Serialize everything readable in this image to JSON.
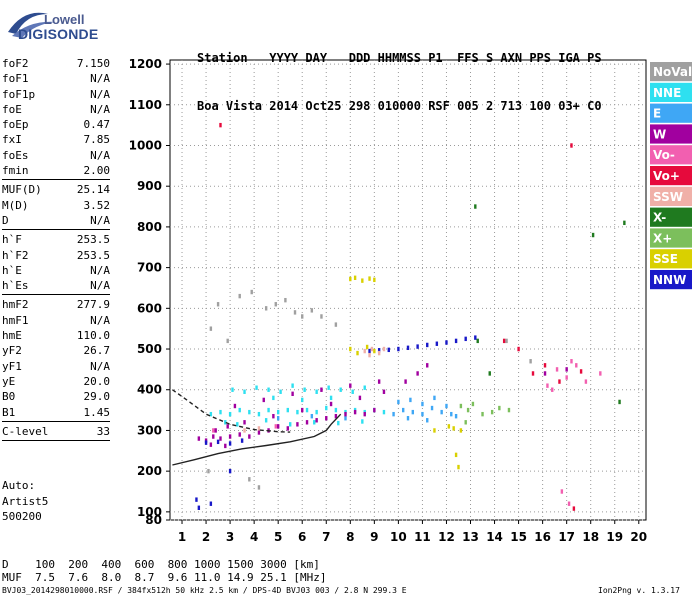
{
  "logo": {
    "line1": "Lowell",
    "line2": "DIGISONDE"
  },
  "header": {
    "row1": "Station   YYYY DAY   DDD HHMMSS P1  FFS S AXN PPS IGA PS",
    "row2": "Boa Vista 2014 Oct25 298 010000 RSF 005 2 713 100 03+ C0"
  },
  "params": [
    {
      "name": "foF2",
      "value": "7.150"
    },
    {
      "name": "foF1",
      "value": "N/A"
    },
    {
      "name": "foF1p",
      "value": "N/A"
    },
    {
      "name": "foE",
      "value": "N/A"
    },
    {
      "name": "foEp",
      "value": "0.47"
    },
    {
      "name": "fxI",
      "value": "7.85"
    },
    {
      "name": "foEs",
      "value": "N/A"
    },
    {
      "name": "fmin",
      "value": "2.00"
    },
    {
      "sep": true
    },
    {
      "name": "MUF(D)",
      "value": "25.14"
    },
    {
      "name": "M(D)",
      "value": "3.52"
    },
    {
      "name": "D",
      "value": "N/A"
    },
    {
      "sep": true
    },
    {
      "name": "h`F",
      "value": "253.5"
    },
    {
      "name": "h`F2",
      "value": "253.5"
    },
    {
      "name": "h`E",
      "value": "N/A"
    },
    {
      "name": "h`Es",
      "value": "N/A"
    },
    {
      "sep": true
    },
    {
      "name": "hmF2",
      "value": "277.9"
    },
    {
      "name": "hmF1",
      "value": "N/A"
    },
    {
      "name": "hmE",
      "value": "110.0"
    },
    {
      "name": "yF2",
      "value": "26.7"
    },
    {
      "name": "yF1",
      "value": "N/A"
    },
    {
      "name": "yE",
      "value": "20.0"
    },
    {
      "name": "B0",
      "value": "29.0"
    },
    {
      "name": "B1",
      "value": "1.45"
    },
    {
      "sep": true
    },
    {
      "name": "C-level",
      "value": "33"
    },
    {
      "sep": true
    }
  ],
  "auto": {
    "line1": "Auto:",
    "line2": "Artist5",
    "line3": "500200"
  },
  "dmuf": {
    "row1": "D    100  200  400  600  800 1000 1500 3000 [km]",
    "row2": "MUF  7.5  7.6  8.0  8.7  9.6 11.0 14.9 25.1 [MHz]"
  },
  "footer": {
    "left": "BVJ03_2014298010000.RSF / 384fx512h 50 kHz 2.5 km / DPS-4D BVJ03 003 / 2.8 N 299.3 E",
    "right": "Ion2Png v. 1.3.17"
  },
  "colors": {
    "NoVal": "#a0a0a0",
    "NNE": "#2ee0f0",
    "E": "#3fa7f5",
    "W": "#a1009f",
    "Vo-": "#f25fb0",
    "Vo+": "#e60a3c",
    "SSW": "#f0b0a8",
    "X-": "#1f7a1f",
    "X+": "#7cbf5c",
    "SSE": "#d9d000",
    "NNW": "#1818c8",
    "logo_blue": "#2e4c8f"
  },
  "chart_data": {
    "type": "scatter",
    "title": "",
    "xlabel": "",
    "ylabel": "",
    "xlim": [
      0.5,
      20.3
    ],
    "ylim": [
      80,
      1210
    ],
    "x_ticks": [
      1,
      2,
      3,
      4,
      5,
      6,
      7,
      8,
      9,
      10,
      11,
      12,
      13,
      14,
      15,
      16,
      17,
      18,
      19,
      20
    ],
    "y_ticks": [
      80,
      100,
      200,
      300,
      400,
      500,
      600,
      700,
      800,
      900,
      1000,
      1100,
      1200
    ],
    "legend": [
      "NoVal",
      "NNE",
      "E",
      "W",
      "Vo-",
      "Vo+",
      "SSW",
      "X-",
      "X+",
      "SSE",
      "NNW"
    ],
    "legend_position": "right",
    "grid": true,
    "series": [
      {
        "name": "NNE",
        "points": [
          [
            2.2,
            340
          ],
          [
            2.6,
            345
          ],
          [
            3.0,
            340
          ],
          [
            3.4,
            350
          ],
          [
            3.8,
            345
          ],
          [
            4.2,
            340
          ],
          [
            4.6,
            350
          ],
          [
            5.0,
            345
          ],
          [
            5.4,
            350
          ],
          [
            5.8,
            345
          ],
          [
            6.2,
            350
          ],
          [
            6.6,
            345
          ],
          [
            7.0,
            355
          ],
          [
            7.4,
            350
          ],
          [
            7.8,
            345
          ],
          [
            8.2,
            350
          ],
          [
            8.6,
            345
          ],
          [
            9.0,
            350
          ],
          [
            9.4,
            345
          ],
          [
            3.1,
            400
          ],
          [
            3.6,
            395
          ],
          [
            4.1,
            405
          ],
          [
            4.6,
            400
          ],
          [
            5.1,
            395
          ],
          [
            5.6,
            410
          ],
          [
            6.1,
            400
          ],
          [
            6.6,
            395
          ],
          [
            7.1,
            405
          ],
          [
            7.6,
            400
          ],
          [
            8.1,
            395
          ],
          [
            8.6,
            405
          ],
          [
            2.8,
            320
          ],
          [
            3.3,
            315
          ],
          [
            4.5,
            325
          ],
          [
            5.5,
            315
          ],
          [
            6.5,
            320
          ],
          [
            7.5,
            318
          ],
          [
            8.5,
            322
          ],
          [
            4.8,
            380
          ],
          [
            6.0,
            375
          ],
          [
            7.2,
            380
          ]
        ]
      },
      {
        "name": "E",
        "points": [
          [
            9.8,
            340
          ],
          [
            10.2,
            350
          ],
          [
            10.6,
            345
          ],
          [
            11.0,
            340
          ],
          [
            11.4,
            355
          ],
          [
            11.8,
            345
          ],
          [
            12.2,
            340
          ],
          [
            10.0,
            370
          ],
          [
            10.5,
            375
          ],
          [
            11.0,
            365
          ],
          [
            11.5,
            380
          ],
          [
            12.0,
            360
          ],
          [
            10.4,
            330
          ],
          [
            11.2,
            325
          ],
          [
            12.4,
            335
          ],
          [
            5.0,
            330
          ],
          [
            6.4,
            335
          ],
          [
            7.8,
            330
          ]
        ]
      },
      {
        "name": "W",
        "points": [
          [
            1.7,
            280
          ],
          [
            2.0,
            275
          ],
          [
            2.3,
            285
          ],
          [
            2.6,
            280
          ],
          [
            3.0,
            285
          ],
          [
            3.4,
            290
          ],
          [
            3.8,
            285
          ],
          [
            4.2,
            295
          ],
          [
            4.6,
            300
          ],
          [
            5.0,
            310
          ],
          [
            5.4,
            305
          ],
          [
            5.8,
            315
          ],
          [
            6.2,
            320
          ],
          [
            6.6,
            325
          ],
          [
            7.0,
            330
          ],
          [
            7.4,
            335
          ],
          [
            7.8,
            340
          ],
          [
            8.2,
            345
          ],
          [
            8.6,
            340
          ],
          [
            9.0,
            350
          ],
          [
            3.2,
            360
          ],
          [
            4.4,
            375
          ],
          [
            5.6,
            390
          ],
          [
            6.8,
            400
          ],
          [
            8.0,
            410
          ],
          [
            9.2,
            420
          ],
          [
            10.3,
            420
          ],
          [
            10.8,
            440
          ],
          [
            11.2,
            460
          ],
          [
            2.4,
            300
          ],
          [
            2.9,
            310
          ],
          [
            3.6,
            320
          ],
          [
            4.8,
            335
          ],
          [
            6.0,
            350
          ],
          [
            7.2,
            365
          ],
          [
            8.4,
            380
          ],
          [
            9.4,
            395
          ],
          [
            16.1,
            440
          ],
          [
            17.0,
            450
          ],
          [
            2.2,
            265
          ],
          [
            2.8,
            262
          ]
        ]
      },
      {
        "name": "NNW",
        "points": [
          [
            8.8,
            495
          ],
          [
            9.2,
            497
          ],
          [
            9.6,
            498
          ],
          [
            10.0,
            500
          ],
          [
            10.4,
            503
          ],
          [
            10.8,
            506
          ],
          [
            11.2,
            510
          ],
          [
            11.6,
            513
          ],
          [
            12.0,
            516
          ],
          [
            12.4,
            520
          ],
          [
            12.8,
            525
          ],
          [
            13.2,
            528
          ],
          [
            2.0,
            270
          ],
          [
            2.5,
            272
          ],
          [
            3.0,
            268
          ],
          [
            3.5,
            275
          ],
          [
            1.6,
            130
          ],
          [
            1.7,
            110
          ],
          [
            2.2,
            120
          ],
          [
            3.0,
            200
          ]
        ]
      },
      {
        "name": "Vo-",
        "points": [
          [
            16.2,
            410
          ],
          [
            16.6,
            450
          ],
          [
            17.0,
            430
          ],
          [
            17.4,
            460
          ],
          [
            17.8,
            420
          ],
          [
            16.4,
            400
          ],
          [
            17.2,
            470
          ],
          [
            18.4,
            440
          ],
          [
            17.1,
            120
          ],
          [
            16.8,
            150
          ],
          [
            2.3,
            300
          ],
          [
            4.9,
            310
          ]
        ]
      },
      {
        "name": "Vo+",
        "points": [
          [
            15.6,
            440
          ],
          [
            16.1,
            460
          ],
          [
            16.7,
            420
          ],
          [
            17.6,
            445
          ],
          [
            14.4,
            520
          ],
          [
            17.2,
            1000
          ],
          [
            15.0,
            500
          ],
          [
            2.6,
            1050
          ],
          [
            17.3,
            108
          ]
        ]
      },
      {
        "name": "SSW",
        "points": [
          [
            8.6,
            495
          ],
          [
            8.9,
            500
          ],
          [
            9.2,
            490
          ],
          [
            8.8,
            485
          ],
          [
            9.4,
            500
          ],
          [
            3.6,
            300
          ],
          [
            4.2,
            305
          ]
        ]
      },
      {
        "name": "X-",
        "points": [
          [
            13.2,
            850
          ],
          [
            13.3,
            520
          ],
          [
            19.4,
            810
          ],
          [
            19.2,
            370
          ],
          [
            13.8,
            440
          ],
          [
            18.1,
            780
          ]
        ]
      },
      {
        "name": "X+",
        "points": [
          [
            12.6,
            360
          ],
          [
            12.9,
            350
          ],
          [
            13.1,
            365
          ],
          [
            13.5,
            340
          ],
          [
            13.9,
            345
          ],
          [
            14.2,
            355
          ],
          [
            14.6,
            350
          ],
          [
            12.8,
            320
          ]
        ]
      },
      {
        "name": "SSE",
        "points": [
          [
            8.0,
            672
          ],
          [
            8.2,
            675
          ],
          [
            8.5,
            668
          ],
          [
            8.8,
            673
          ],
          [
            9.0,
            670
          ],
          [
            8.0,
            500
          ],
          [
            8.3,
            490
          ],
          [
            8.7,
            505
          ],
          [
            9.0,
            495
          ],
          [
            12.1,
            310
          ],
          [
            12.3,
            305
          ],
          [
            12.6,
            300
          ],
          [
            12.4,
            240
          ],
          [
            12.5,
            210
          ],
          [
            11.5,
            300
          ]
        ]
      },
      {
        "name": "NoVal",
        "points": [
          [
            2.5,
            610
          ],
          [
            3.4,
            630
          ],
          [
            3.9,
            640
          ],
          [
            4.5,
            600
          ],
          [
            4.9,
            610
          ],
          [
            5.3,
            620
          ],
          [
            5.7,
            590
          ],
          [
            6.0,
            580
          ],
          [
            6.4,
            595
          ],
          [
            6.8,
            580
          ],
          [
            7.4,
            560
          ],
          [
            2.2,
            550
          ],
          [
            2.9,
            520
          ],
          [
            14.5,
            520
          ],
          [
            15.5,
            470
          ],
          [
            2.1,
            200
          ],
          [
            3.8,
            180
          ],
          [
            4.2,
            160
          ]
        ]
      }
    ],
    "curves": [
      {
        "name": "virtual-height",
        "style": "dashed",
        "points": [
          [
            0.6,
            400
          ],
          [
            1.2,
            375
          ],
          [
            2.0,
            340
          ],
          [
            3.0,
            315
          ],
          [
            4.0,
            302
          ],
          [
            5.0,
            297
          ],
          [
            5.5,
            296
          ]
        ]
      },
      {
        "name": "profile",
        "style": "solid",
        "points": [
          [
            0.6,
            215
          ],
          [
            1.5,
            228
          ],
          [
            2.5,
            243
          ],
          [
            3.5,
            255
          ],
          [
            4.5,
            263
          ],
          [
            5.5,
            272
          ],
          [
            6.5,
            285
          ],
          [
            7.0,
            300
          ],
          [
            7.2,
            315
          ],
          [
            7.6,
            340
          ]
        ]
      }
    ]
  }
}
